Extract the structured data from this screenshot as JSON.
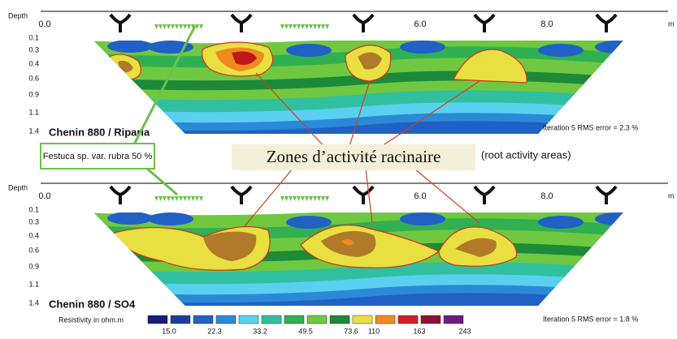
{
  "header": {
    "depth_label": "Depth",
    "unit": "m"
  },
  "panels": [
    {
      "x_labels": [
        "0.0",
        "6.0",
        "8.0"
      ],
      "depth_labels": [
        "0.1",
        "0.3",
        "0.4",
        "0.6",
        "0.9",
        "1.1",
        "1.4"
      ],
      "title": "Chenin 880 / Riparia",
      "rms": "Iteration 5 RMS error = 2.3 %"
    },
    {
      "x_labels": [
        "0.0",
        "6.0",
        "8.0"
      ],
      "depth_labels": [
        "0.1",
        "0.3",
        "0.4",
        "0.6",
        "0.9",
        "1.1",
        "1.4"
      ],
      "title": "Chenin 880 / SO4",
      "rms": "Iteration 5 RMS error = 1.8 %"
    }
  ],
  "annotations": {
    "plant": "Festuca sp. var. rubra 50 %",
    "zones": "Zones d’activité racinaire",
    "zones_translation": "(root activity areas)"
  },
  "legend": {
    "title": "Resistivity in ohm.m",
    "labels": [
      "15.0",
      "22.3",
      "33.2",
      "49.5",
      "73.6",
      "110",
      "163",
      "243"
    ]
  }
}
